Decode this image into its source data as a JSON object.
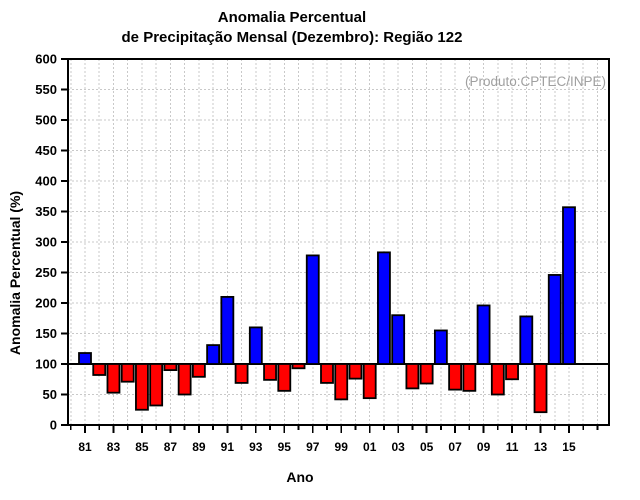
{
  "chart_data": {
    "type": "bar",
    "title": "Anomalia Percentual de Precipitação Mensal (Dezembro): Região 122",
    "title_lines": [
      "Anomalia Percentual",
      "de Precipitação Mensal (Dezembro): Região 122"
    ],
    "annotation": "(Produto:CPTEC/INPE)",
    "xlabel": "Ano",
    "ylabel": "Anomalia Percentual (%)",
    "ylim": [
      0,
      600
    ],
    "yticks": [
      0,
      50,
      100,
      150,
      200,
      250,
      300,
      350,
      400,
      450,
      500,
      550,
      600
    ],
    "baseline": 100,
    "grid": true,
    "legend_position": "none",
    "categories": [
      "81",
      "82",
      "83",
      "84",
      "85",
      "86",
      "87",
      "88",
      "89",
      "90",
      "91",
      "92",
      "93",
      "94",
      "95",
      "96",
      "97",
      "98",
      "99",
      "00",
      "01",
      "02",
      "03",
      "04",
      "05",
      "06",
      "07",
      "08",
      "09",
      "10",
      "11",
      "12",
      "13",
      "14",
      "15"
    ],
    "values": [
      118,
      82,
      53,
      71,
      25,
      32,
      90,
      50,
      79,
      131,
      210,
      69,
      160,
      74,
      56,
      93,
      278,
      69,
      42,
      76,
      44,
      283,
      180,
      60,
      68,
      155,
      58,
      56,
      196,
      50,
      75,
      178,
      21,
      246,
      357
    ],
    "x_tick_labels": [
      "81",
      "83",
      "85",
      "87",
      "89",
      "91",
      "93",
      "95",
      "97",
      "99",
      "01",
      "03",
      "05",
      "07",
      "09",
      "11",
      "13",
      "15"
    ],
    "colors": {
      "above_baseline": "#0000ff",
      "below_baseline": "#ff0000",
      "gridline": "#c9c9c9",
      "annotation_text": "#a0a0a0",
      "axis": "#000000"
    }
  }
}
